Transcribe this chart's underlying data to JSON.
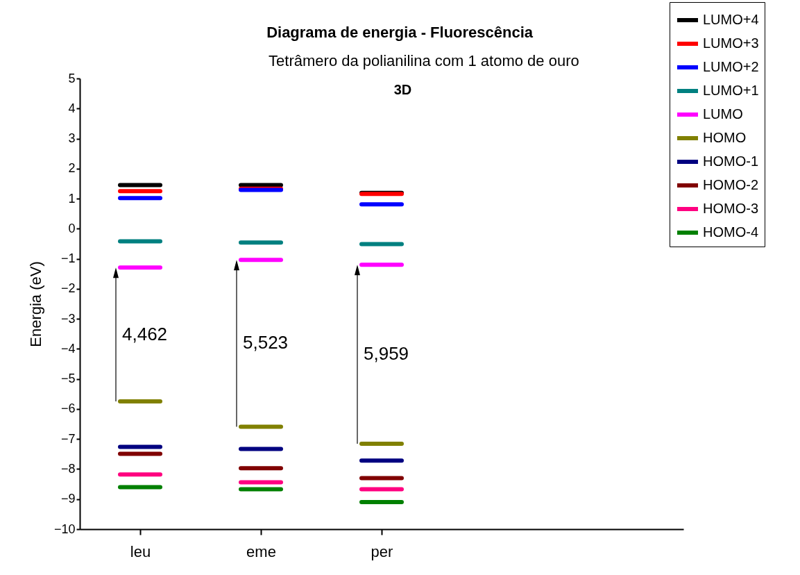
{
  "chart_data": {
    "type": "line",
    "title": "Diagrama de energia - Fluorescência",
    "subtitle": "Tetrâmero da polianilina com 1 atomo de ouro",
    "ylabel": "Energia (eV)",
    "categories": [
      null,
      null,
      null,
      "leu",
      null,
      null,
      null,
      null,
      null,
      "eme",
      null,
      null,
      null,
      null,
      null,
      "per",
      null,
      null,
      null,
      null,
      null,
      null,
      null,
      null,
      null,
      null,
      null,
      null,
      null,
      null,
      null
    ],
    "series": [
      {
        "name": "LUMO+4",
        "color": "#000000",
        "values": [
          null,
          null,
          1.45,
          1.45,
          1.45,
          null,
          null,
          null,
          1.45,
          1.45,
          1.45,
          null,
          null,
          null,
          1.19,
          1.19,
          1.19,
          null,
          null,
          null,
          null,
          null,
          null,
          null,
          null,
          null,
          null,
          null,
          null,
          null,
          null
        ]
      },
      {
        "name": "LUMO+3",
        "color": "#ff0000",
        "values": [
          null,
          null,
          1.25,
          1.25,
          1.25,
          null,
          null,
          null,
          1.33,
          1.33,
          1.33,
          null,
          null,
          null,
          1.16,
          1.16,
          1.16,
          null,
          null,
          null,
          null,
          null,
          null,
          null,
          null,
          null,
          null,
          null,
          null,
          null,
          null
        ]
      },
      {
        "name": "LUMO+2",
        "color": "#0000ff",
        "values": [
          null,
          null,
          1.02,
          1.02,
          1.02,
          null,
          null,
          null,
          1.29,
          1.29,
          1.29,
          null,
          null,
          null,
          0.81,
          0.81,
          0.81,
          null,
          null,
          null,
          null,
          null,
          null,
          null,
          null,
          null,
          null,
          null,
          null,
          null,
          null
        ]
      },
      {
        "name": "LUMO+1",
        "color": "#008080",
        "values": [
          null,
          null,
          -0.42,
          -0.42,
          -0.42,
          null,
          null,
          null,
          -0.46,
          -0.46,
          -0.46,
          null,
          null,
          null,
          -0.51,
          -0.51,
          -0.51,
          null,
          null,
          null,
          null,
          null,
          null,
          null,
          null,
          null,
          null,
          null,
          null,
          null,
          null
        ]
      },
      {
        "name": "LUMO",
        "color": "#ff00ff",
        "values": [
          null,
          null,
          -1.29,
          -1.29,
          -1.29,
          null,
          null,
          null,
          -1.04,
          -1.04,
          -1.04,
          null,
          null,
          null,
          -1.2,
          -1.2,
          -1.2,
          null,
          null,
          null,
          null,
          null,
          null,
          null,
          null,
          null,
          null,
          null,
          null,
          null,
          null
        ]
      },
      {
        "name": "HOMO",
        "color": "#808000",
        "values": [
          null,
          null,
          -5.75,
          -5.75,
          -5.75,
          null,
          null,
          null,
          -6.59,
          -6.59,
          -6.59,
          null,
          null,
          null,
          -7.16,
          -7.16,
          -7.16,
          null,
          null,
          null,
          null,
          null,
          null,
          null,
          null,
          null,
          null,
          null,
          null,
          null,
          null
        ]
      },
      {
        "name": "HOMO-1",
        "color": "#000080",
        "values": [
          null,
          null,
          -7.26,
          -7.26,
          -7.26,
          null,
          null,
          null,
          -7.33,
          -7.33,
          -7.33,
          null,
          null,
          null,
          -7.72,
          -7.72,
          -7.72,
          null,
          null,
          null,
          null,
          null,
          null,
          null,
          null,
          null,
          null,
          null,
          null,
          null,
          null
        ]
      },
      {
        "name": "HOMO-2",
        "color": "#800000",
        "values": [
          null,
          null,
          -7.49,
          -7.49,
          -7.49,
          null,
          null,
          null,
          -7.97,
          -7.97,
          -7.97,
          null,
          null,
          null,
          -8.3,
          -8.3,
          -8.3,
          null,
          null,
          null,
          null,
          null,
          null,
          null,
          null,
          null,
          null,
          null,
          null,
          null,
          null
        ]
      },
      {
        "name": "HOMO-3",
        "color": "#ff0080",
        "values": [
          null,
          null,
          -8.18,
          -8.18,
          -8.18,
          null,
          null,
          null,
          -8.44,
          -8.44,
          -8.44,
          null,
          null,
          null,
          -8.67,
          -8.67,
          -8.67,
          null,
          null,
          null,
          null,
          null,
          null,
          null,
          null,
          null,
          null,
          null,
          null,
          null,
          null
        ]
      },
      {
        "name": "HOMO-4",
        "color": "#008000",
        "values": [
          null,
          null,
          -8.6,
          -8.6,
          -8.6,
          null,
          null,
          null,
          -8.67,
          -8.67,
          -8.67,
          null,
          null,
          null,
          -9.1,
          -9.1,
          -9.1,
          null,
          null,
          null,
          null,
          null,
          null,
          null,
          null,
          null,
          null,
          null,
          null,
          null,
          null
        ]
      }
    ],
    "annotations": [
      "3D",
      "4,462",
      "5,523",
      "5,959"
    ],
    "ylim": [
      -10,
      5
    ],
    "yticks": [
      -10,
      -9,
      -8,
      -7,
      -6,
      -5,
      -4,
      -3,
      -2,
      -1,
      0,
      1,
      2,
      3,
      4,
      5
    ],
    "grid": false,
    "legend": "top right",
    "line_style": "solid"
  }
}
